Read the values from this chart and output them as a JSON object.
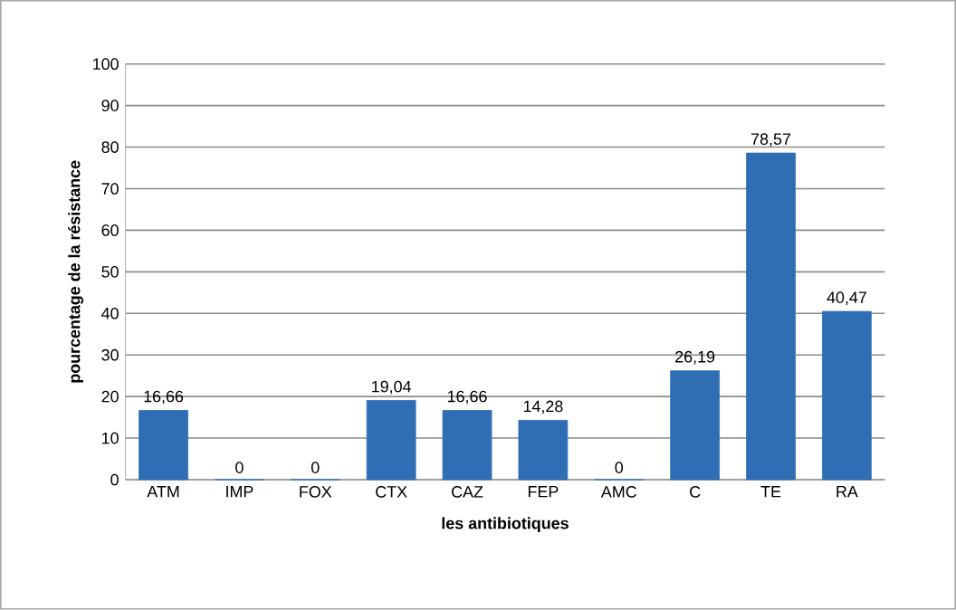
{
  "chart_data": {
    "type": "bar",
    "xlabel": "les antibiotiques",
    "ylabel": "pourcentage de la résistance",
    "categories": [
      "ATM",
      "IMP",
      "FOX",
      "CTX",
      "CAZ",
      "FEP",
      "AMC",
      "C",
      "TE",
      "RA"
    ],
    "values": [
      16.66,
      0,
      0,
      19.04,
      16.66,
      14.28,
      0,
      26.19,
      78.57,
      40.47
    ],
    "value_labels": [
      "16,66",
      "0",
      "0",
      "19,04",
      "16,66",
      "14,28",
      "0",
      "26,19",
      "78,57",
      "40,47"
    ],
    "color": "#2f6db5",
    "ylim": [
      0,
      100
    ],
    "yticks": [
      0,
      10,
      20,
      30,
      40,
      50,
      60,
      70,
      80,
      90,
      100
    ],
    "grid": "y"
  }
}
